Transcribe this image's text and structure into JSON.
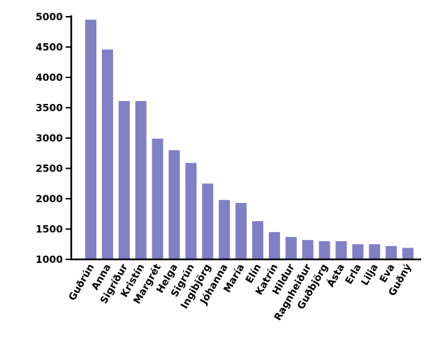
{
  "chart_data": {
    "type": "bar",
    "categories": [
      "Guðrún",
      "Anna",
      "Sigríður",
      "Kristín",
      "Margrét",
      "Helga",
      "Sigrún",
      "Ingibjörg",
      "Jóhanna",
      "María",
      "Elín",
      "Katrín",
      "Hildur",
      "Ragnheiður",
      "Guðbjörg",
      "Ásta",
      "Erla",
      "Lilja",
      "Eva",
      "Guðný"
    ],
    "values": [
      4950,
      4460,
      3610,
      3610,
      2990,
      2800,
      2590,
      2250,
      1980,
      1930,
      1630,
      1450,
      1370,
      1320,
      1300,
      1300,
      1250,
      1250,
      1220,
      1190
    ],
    "color": "#8080c4",
    "ylim": [
      1000,
      5000
    ],
    "yticks": [
      1000,
      1500,
      2000,
      2500,
      3000,
      3500,
      4000,
      4500,
      5000
    ]
  }
}
